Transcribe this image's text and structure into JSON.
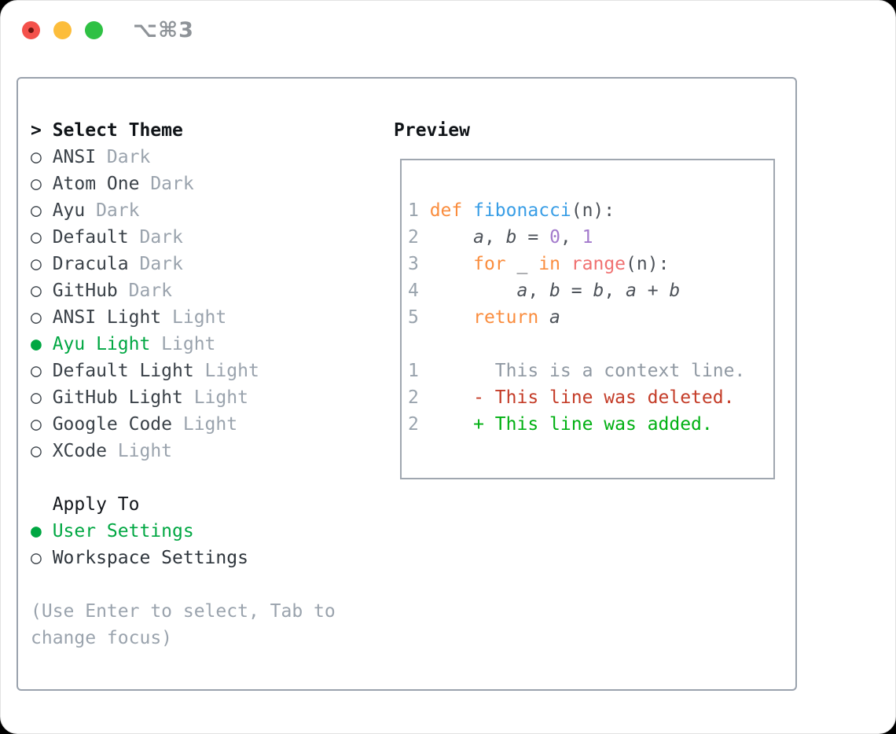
{
  "window": {
    "title": "⌥⌘3",
    "traffic_lights": [
      {
        "name": "close",
        "color": "#f4514b"
      },
      {
        "name": "minimize",
        "color": "#fcbd3b"
      },
      {
        "name": "zoom",
        "color": "#2fc144"
      }
    ]
  },
  "icons": {
    "radio_unselected": "○",
    "radio_selected": "●",
    "selection_caret": ">"
  },
  "theme_panel": {
    "header_prefix": ">",
    "header": "Select Theme",
    "items": [
      {
        "name": "ANSI",
        "variant": "Dark",
        "selected": false
      },
      {
        "name": "Atom One",
        "variant": "Dark",
        "selected": false
      },
      {
        "name": "Ayu",
        "variant": "Dark",
        "selected": false
      },
      {
        "name": "Default",
        "variant": "Dark",
        "selected": false
      },
      {
        "name": "Dracula",
        "variant": "Dark",
        "selected": false
      },
      {
        "name": "GitHub",
        "variant": "Dark",
        "selected": false
      },
      {
        "name": "ANSI Light",
        "variant": "Light",
        "selected": false
      },
      {
        "name": "Ayu Light",
        "variant": "Light",
        "selected": true
      },
      {
        "name": "Default Light",
        "variant": "Light",
        "selected": false
      },
      {
        "name": "GitHub Light",
        "variant": "Light",
        "selected": false
      },
      {
        "name": "Google Code",
        "variant": "Light",
        "selected": false
      },
      {
        "name": "XCode",
        "variant": "Light",
        "selected": false
      }
    ],
    "apply_to": {
      "header": "Apply To",
      "options": [
        {
          "label": "User Settings",
          "selected": true
        },
        {
          "label": "Workspace Settings",
          "selected": false
        }
      ]
    },
    "hint_lines": [
      "(Use Enter to select, Tab to",
      "change focus)"
    ]
  },
  "preview": {
    "header": "Preview",
    "lines": [
      {
        "num": "1",
        "tokens": [
          {
            "text": "def",
            "style": "keyword"
          },
          {
            "text": " ",
            "style": "plain"
          },
          {
            "text": "fibonacci",
            "style": "function"
          },
          {
            "text": "(n):",
            "style": "plain"
          }
        ]
      },
      {
        "num": "2",
        "tokens": [
          {
            "text": "    ",
            "style": "plain"
          },
          {
            "text": "a",
            "style": "variable"
          },
          {
            "text": ", ",
            "style": "plain"
          },
          {
            "text": "b",
            "style": "variable"
          },
          {
            "text": " = ",
            "style": "plain"
          },
          {
            "text": "0",
            "style": "number"
          },
          {
            "text": ", ",
            "style": "plain"
          },
          {
            "text": "1",
            "style": "number"
          }
        ]
      },
      {
        "num": "3",
        "tokens": [
          {
            "text": "    ",
            "style": "plain"
          },
          {
            "text": "for",
            "style": "keyword"
          },
          {
            "text": " ",
            "style": "plain"
          },
          {
            "text": "_",
            "style": "variable"
          },
          {
            "text": " ",
            "style": "plain"
          },
          {
            "text": "in",
            "style": "keyword"
          },
          {
            "text": " ",
            "style": "plain"
          },
          {
            "text": "range",
            "style": "builtin"
          },
          {
            "text": "(n):",
            "style": "plain"
          }
        ]
      },
      {
        "num": "4",
        "tokens": [
          {
            "text": "        ",
            "style": "plain"
          },
          {
            "text": "a",
            "style": "variable"
          },
          {
            "text": ", ",
            "style": "plain"
          },
          {
            "text": "b",
            "style": "variable"
          },
          {
            "text": " = ",
            "style": "plain"
          },
          {
            "text": "b",
            "style": "variable"
          },
          {
            "text": ", ",
            "style": "plain"
          },
          {
            "text": "a",
            "style": "variable"
          },
          {
            "text": " + ",
            "style": "plain"
          },
          {
            "text": "b",
            "style": "variable"
          }
        ]
      },
      {
        "num": "5",
        "tokens": [
          {
            "text": "    ",
            "style": "plain"
          },
          {
            "text": "return",
            "style": "keyword"
          },
          {
            "text": " ",
            "style": "plain"
          },
          {
            "text": "a",
            "style": "variable"
          }
        ]
      },
      {
        "num": "",
        "tokens": []
      },
      {
        "num": "1",
        "tokens": [
          {
            "text": "      This is a context line.",
            "style": "context"
          }
        ]
      },
      {
        "num": "2",
        "tokens": [
          {
            "text": "    - This line was deleted.",
            "style": "deleted"
          }
        ]
      },
      {
        "num": "2",
        "tokens": [
          {
            "text": "    + This line was added.",
            "style": "added"
          }
        ]
      }
    ]
  },
  "colors": {
    "selection_green": "#00a742",
    "added_green": "#00b012",
    "deleted_red": "#c43c28",
    "keyword_orange": "#fa8d3e",
    "function_blue": "#399ee6",
    "number_purple": "#a37acc",
    "builtin_salmon": "#f07171",
    "muted_gray": "#9aa3ad",
    "text_dark": "#3a4148",
    "panel_border": "#9aa2ad"
  }
}
